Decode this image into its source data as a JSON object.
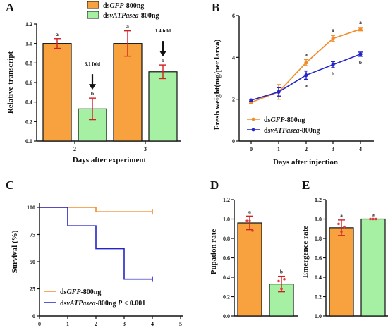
{
  "colors": {
    "ds_gfp": "#F7A13F",
    "ds_vatpase": "#A5F0A3",
    "line_gfp": "#F28C28",
    "line_vatpase": "#2424C8",
    "error_bar": "#D02020",
    "point": "#E23A3A",
    "axis": "#111111"
  },
  "chart_data": [
    {
      "panel": "A",
      "type": "bar",
      "ylabel": "Relative transcript",
      "xlabel": "Days after experiment",
      "categories": [
        "2",
        "3"
      ],
      "ylim": [
        0,
        1.2
      ],
      "yticks": [
        "0.0",
        "0.2",
        "0.4",
        "0.6",
        "0.8",
        "1.0",
        "1.2"
      ],
      "legend": [
        {
          "pre": "ds",
          "em": "GFP",
          "post": "-800ng"
        },
        {
          "pre": "ds",
          "em": "vATPasea",
          "post": "-800ng"
        }
      ],
      "series": [
        {
          "values": [
            1.0,
            1.0
          ],
          "errors": [
            0.05,
            0.13
          ],
          "sig": [
            "a",
            "a"
          ]
        },
        {
          "values": [
            0.33,
            0.71
          ],
          "errors": [
            0.11,
            0.07
          ],
          "sig": [
            "b",
            "b"
          ]
        }
      ],
      "fold_labels": [
        "3.1 fold",
        "1.4 fold"
      ]
    },
    {
      "panel": "B",
      "type": "line",
      "ylabel": "Fresh weight(mg/per larva)",
      "xlabel": "Days after injection",
      "x": [
        0,
        1,
        2,
        3,
        4
      ],
      "ylim": [
        0,
        6
      ],
      "yticks": [
        "0",
        "2",
        "4",
        "6"
      ],
      "xticks": [
        "0",
        "1",
        "2",
        "3",
        "4"
      ],
      "legend": [
        {
          "pre": "ds",
          "em": "GFP",
          "post": "-800ng"
        },
        {
          "pre": "ds",
          "em": "vATPasea",
          "post": "-800ng"
        }
      ],
      "series": [
        {
          "values": [
            1.85,
            2.35,
            3.75,
            4.9,
            5.35
          ],
          "errors": [
            0.05,
            0.35,
            0.15,
            0.15,
            0.08
          ],
          "sig": [
            "",
            "",
            "a",
            "a",
            "a"
          ]
        },
        {
          "values": [
            1.95,
            2.35,
            3.15,
            3.65,
            4.15
          ],
          "errors": [
            0.05,
            0.2,
            0.2,
            0.15,
            0.1
          ],
          "sig": [
            "",
            "",
            "a",
            "b",
            "b"
          ]
        }
      ]
    },
    {
      "panel": "C",
      "type": "line",
      "ylabel": "Survival (%)",
      "x": [
        0,
        1,
        2,
        3,
        4,
        5
      ],
      "xlim": [
        0,
        5
      ],
      "ylim": [
        0,
        100
      ],
      "yticks": [
        "0",
        "25",
        "50",
        "75",
        "100"
      ],
      "xticks": [
        "0",
        "1",
        "2",
        "3",
        "4",
        "5"
      ],
      "legend": [
        {
          "pre": "ds",
          "em": "GFP",
          "post": "-800ng",
          "extra": ""
        },
        {
          "pre": "ds",
          "em": "vATPasea",
          "post": "-800ng",
          "extra": "P < 0.001"
        }
      ],
      "series": [
        {
          "step_x": [
            0,
            2,
            2,
            4
          ],
          "step_y": [
            100,
            100,
            96,
            96
          ]
        },
        {
          "step_x": [
            0,
            1,
            1,
            2,
            2,
            3,
            3,
            4
          ],
          "step_y": [
            100,
            100,
            83,
            83,
            62,
            62,
            34,
            34
          ]
        }
      ]
    },
    {
      "panel": "D",
      "type": "bar",
      "ylabel": "Pupation rate",
      "ylim": [
        0,
        1.2
      ],
      "yticks": [
        "0.0",
        "0.2",
        "0.4",
        "0.6",
        "0.8",
        "1.0",
        "1.2"
      ],
      "series": [
        {
          "values": [
            0.96
          ],
          "errors": [
            0.07
          ],
          "sig": [
            "a"
          ],
          "points": [
            0.98,
            0.98,
            0.88
          ]
        },
        {
          "values": [
            0.33
          ],
          "errors": [
            0.08
          ],
          "sig": [
            "b"
          ],
          "points": [
            0.36,
            0.28,
            0.38
          ]
        }
      ]
    },
    {
      "panel": "E",
      "type": "bar",
      "ylabel": "Emergence rate",
      "ylim": [
        0,
        1.2
      ],
      "yticks": [
        "0.0",
        "0.2",
        "0.4",
        "0.6",
        "0.8",
        "1.0",
        "1.2"
      ],
      "series": [
        {
          "values": [
            0.91
          ],
          "errors": [
            0.08
          ],
          "sig": [
            "a"
          ],
          "points": [
            0.95,
            0.87,
            0.92
          ]
        },
        {
          "values": [
            1.0
          ],
          "errors": [
            0.0
          ],
          "sig": [
            "a"
          ],
          "points": [
            1.0,
            1.0,
            1.0
          ]
        }
      ]
    }
  ]
}
